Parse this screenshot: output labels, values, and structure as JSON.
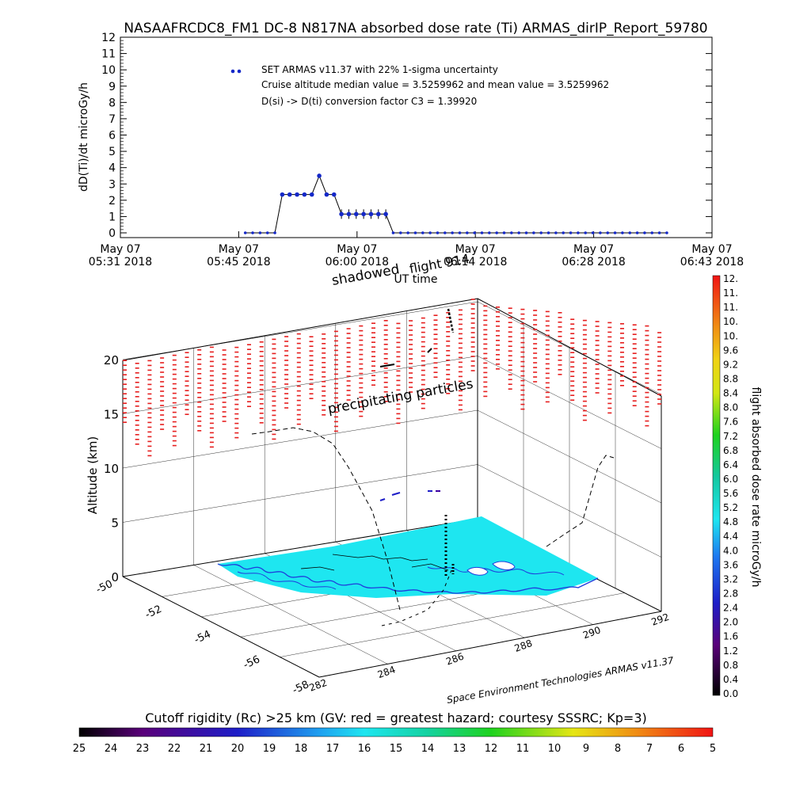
{
  "title": "NASAAFRCDC8_FM1  DC-8    N817NA absorbed dose rate (Ti) ARMAS_dirIP_Report_59780",
  "chart_data": [
    {
      "type": "line",
      "ylabel": "dD(Ti)/dt microGy/h",
      "xlabel": "UT time",
      "ylim": [
        0,
        12
      ],
      "ytick_labels": [
        "0",
        "1",
        "2",
        "3",
        "4",
        "5",
        "6",
        "7",
        "8",
        "9",
        "10",
        "11",
        "12"
      ],
      "xticks": [
        {
          "day": "May 07",
          "time": "05:31 2018"
        },
        {
          "day": "May 07",
          "time": "05:45 2018"
        },
        {
          "day": "May 07",
          "time": "06:00 2018"
        },
        {
          "day": "May 07",
          "time": "06:14 2018"
        },
        {
          "day": "May 07",
          "time": "06:28 2018"
        },
        {
          "day": "May 07",
          "time": "06:43 2018"
        }
      ],
      "xlim_minutes_after_0531": [
        0,
        72
      ],
      "annotations": [
        "SET ARMAS v11.37 with 22% 1-sigma uncertainty",
        "Cruise altitude median value = 3.5259962 and mean value = 3.5259962",
        "D(si) -> D(ti) conversion factor C3 = 1.39920"
      ],
      "legend_marker_color": "#1428c8",
      "series": [
        {
          "minutes_after_0531": [
            15.2,
            16.1,
            17,
            17.9,
            18.8,
            19.7,
            20.6,
            21.5,
            22.4,
            23.3,
            24.2,
            25.1,
            26,
            26.9,
            27.8,
            28.7,
            29.6,
            30.5,
            31.4,
            32.3,
            33.2,
            34.1,
            35,
            35.9,
            36.8,
            37.7,
            38.6,
            39.5,
            40.4,
            41.3,
            42.2,
            43.1,
            44,
            44.9,
            45.8,
            46.7,
            47.6,
            48.5,
            49.4,
            50.3,
            51.2,
            52.1,
            53,
            53.9,
            54.8,
            55.7,
            56.6,
            57.5,
            58.4,
            59.3,
            60.2,
            61.1,
            62,
            62.9,
            63.8,
            64.7,
            65.6,
            66.5
          ],
          "dose_rate": [
            0,
            0,
            0,
            0,
            0,
            2.35,
            2.35,
            2.35,
            2.35,
            2.35,
            3.5,
            2.35,
            2.35,
            1.15,
            1.15,
            1.15,
            1.15,
            1.15,
            1.15,
            1.15,
            0,
            0,
            0,
            0,
            0,
            0,
            0,
            0,
            0,
            0,
            0,
            0,
            0,
            0,
            0,
            0,
            0,
            0,
            0,
            0,
            0,
            0,
            0,
            0,
            0,
            0,
            0,
            0,
            0,
            0,
            0,
            0,
            0,
            0,
            0,
            0,
            0,
            0
          ],
          "color": "#1428c8",
          "line_color": "#000000"
        }
      ]
    },
    {
      "type": "scatter",
      "subtype": "3d-flight-track",
      "zlabel": "Altitude (km)",
      "ztick_labels": [
        "0",
        "5",
        "10",
        "15",
        "20"
      ],
      "lat_tick_labels": [
        "-50",
        "-52",
        "-54",
        "-56",
        "-58"
      ],
      "lon_tick_labels": [
        "282",
        "284",
        "286",
        "288",
        "290",
        "292"
      ],
      "annotations": [
        "shadowed",
        "flight 914",
        "precipitating particles"
      ],
      "credit": "Space Environment Technologies ARMAS v11.37",
      "track_alt_km": [
        0,
        1.5,
        3,
        5,
        7,
        9,
        10.4,
        11.8,
        11.8,
        11.5,
        11,
        11,
        11,
        11,
        11,
        11,
        11,
        11,
        11,
        11,
        11,
        11,
        10,
        8,
        6,
        4,
        2,
        0
      ],
      "dose_markers_alt_km": [
        {
          "alt": 11.8,
          "dose": 3.5,
          "color": "#1e1ec8"
        },
        {
          "alt": 11.7,
          "dose": 3.2,
          "color": "#1e1ec8"
        },
        {
          "alt": 11.5,
          "dose": 2.4,
          "color": "#3c00a0"
        },
        {
          "alt": 11.3,
          "dose": 0.8,
          "color": "#320032"
        }
      ]
    }
  ],
  "colorbar_dose": {
    "label": "flight absorbed dose rate microGy/h",
    "tick_labels": [
      "0.0",
      "0.4",
      "0.8",
      "1.2",
      "1.6",
      "2.0",
      "2.4",
      "2.8",
      "3.2",
      "3.6",
      "4.0",
      "4.4",
      "4.8",
      "5.2",
      "5.6",
      "6.0",
      "6.4",
      "6.8",
      "7.2",
      "7.6",
      "8.0",
      "8.4",
      "8.8",
      "9.2",
      "9.6",
      "10.",
      "10.",
      "11.",
      "11.",
      "12."
    ]
  },
  "colorbar_rigidity": {
    "label": "Cutoff rigidity (Rc) >25 km (GV: red = greatest hazard; courtesy SSSRC; Kp=3)",
    "tick_labels": [
      "25",
      "24",
      "23",
      "22",
      "21",
      "20",
      "19",
      "18",
      "17",
      "16",
      "15",
      "14",
      "13",
      "12",
      "11",
      "10",
      "9",
      "8",
      "7",
      "6",
      "5"
    ]
  },
  "colors": {
    "ocean": "#1ee6f0",
    "coast": "#1e3cdc",
    "rigidity_high": "#e61e1e"
  }
}
